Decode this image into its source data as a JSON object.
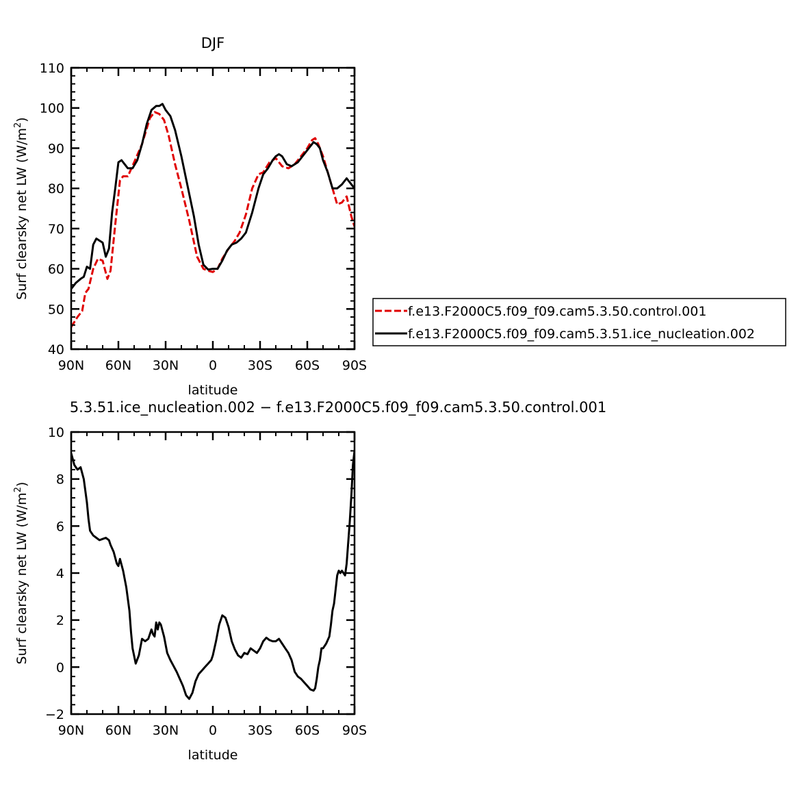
{
  "chart_data": [
    {
      "type": "line",
      "title": "DJF",
      "xlabel": "latitude",
      "ylabel": "Surf clearsky net LW (W/m²)",
      "ylabel_parts": {
        "main": "Surf clearsky net LW (W/m",
        "sup": "2",
        "end": ")"
      },
      "xlim": [
        -90,
        90
      ],
      "ylim": [
        40,
        110
      ],
      "xticks": [
        -90,
        -60,
        -30,
        0,
        30,
        60,
        90
      ],
      "xtick_labels": [
        "90N",
        "60N",
        "30N",
        "0",
        "30S",
        "60S",
        "90S"
      ],
      "yticks": [
        40,
        50,
        60,
        70,
        80,
        90,
        100,
        110
      ],
      "ytick_labels": [
        "40",
        "50",
        "60",
        "70",
        "80",
        "90",
        "100",
        "110"
      ],
      "legend": "outside-right",
      "series": [
        {
          "name": "f.e13.F2000C5.f09_f09.cam5.3.50.control.001",
          "color": "#e00000",
          "dash": true,
          "x": [
            -90,
            -86,
            -83,
            -81,
            -79,
            -76,
            -73,
            -70,
            -67,
            -65,
            -62,
            -59,
            -57,
            -54,
            -50,
            -45,
            -40,
            -37,
            -34,
            -31,
            -28,
            -24,
            -20,
            -15,
            -10,
            -6,
            -3,
            0,
            3,
            6,
            10,
            14,
            17,
            21,
            25,
            29,
            32,
            36,
            40,
            44,
            48,
            52,
            56,
            60,
            63,
            65,
            67,
            70,
            73,
            76,
            79,
            82,
            85,
            88,
            90
          ],
          "y": [
            45.5,
            48,
            49.5,
            54,
            55,
            60,
            62.5,
            62,
            57.5,
            59.5,
            71,
            82,
            83,
            83,
            86.5,
            91,
            97.5,
            99,
            98.5,
            97,
            93,
            86,
            80,
            72,
            63,
            60,
            59.5,
            59.2,
            60,
            62.5,
            65,
            67,
            69,
            73.5,
            80,
            83.5,
            84,
            86.5,
            87.5,
            85.5,
            85,
            86,
            88,
            90,
            92,
            92.5,
            91,
            88,
            84,
            80,
            76,
            76.5,
            78,
            73,
            70.5
          ]
        },
        {
          "name": "f.e13.F2000C5.f09_f09.cam5.3.51.ice_nucleation.002",
          "color": "#000000",
          "dash": false,
          "x": [
            -90,
            -87,
            -84,
            -82,
            -80,
            -78,
            -76,
            -74,
            -72,
            -70,
            -68,
            -66,
            -64,
            -62,
            -60,
            -58,
            -56,
            -54,
            -51,
            -48,
            -45,
            -42,
            -39,
            -36,
            -34,
            -32,
            -30,
            -27,
            -24,
            -20,
            -16,
            -12,
            -9,
            -6,
            -3,
            0,
            3,
            6,
            9,
            12,
            15,
            18,
            21,
            25,
            29,
            32,
            35,
            38,
            40,
            42,
            44,
            47,
            50,
            54,
            58,
            62,
            64,
            66,
            68,
            70,
            73,
            76,
            79,
            82,
            85,
            87,
            88,
            90
          ],
          "y": [
            55,
            56.5,
            57.5,
            58,
            60.5,
            60,
            66,
            67.5,
            67,
            66.5,
            63,
            65,
            74,
            80,
            86.5,
            87,
            86,
            85,
            85,
            87,
            91,
            96,
            99.5,
            100.5,
            100.5,
            101,
            99.5,
            98,
            94.5,
            88,
            80.5,
            73,
            66,
            61,
            59.8,
            60,
            60,
            62,
            64.5,
            66,
            66.5,
            67.5,
            69,
            74,
            80,
            83.5,
            85,
            87,
            88,
            88.5,
            88,
            86,
            85.5,
            86.5,
            88.5,
            90.5,
            91.5,
            91,
            90,
            87,
            84,
            80,
            80,
            81,
            82.5,
            81.5,
            81,
            80
          ]
        }
      ]
    },
    {
      "type": "line",
      "title": "5.3.51.ice_nucleation.002 − f.e13.F2000C5.f09_f09.cam5.3.50.control.001",
      "xlabel": "latitude",
      "ylabel": "Surf clearsky net LW (W/m²)",
      "ylabel_parts": {
        "main": "Surf clearsky net LW (W/m",
        "sup": "2",
        "end": ")"
      },
      "xlim": [
        -90,
        90
      ],
      "ylim": [
        -2,
        10
      ],
      "xticks": [
        -90,
        -60,
        -30,
        0,
        30,
        60,
        90
      ],
      "xtick_labels": [
        "90N",
        "60N",
        "30N",
        "0",
        "30S",
        "60S",
        "90S"
      ],
      "yticks": [
        -2,
        0,
        2,
        4,
        6,
        8,
        10
      ],
      "ytick_labels": [
        "−2",
        "0",
        "2",
        "4",
        "6",
        "8",
        "10"
      ],
      "series": [
        {
          "color": "#000000",
          "dash": false,
          "x": [
            -90,
            -88,
            -86,
            -84,
            -82,
            -80,
            -79,
            -78,
            -76,
            -74,
            -72,
            -70,
            -68,
            -66,
            -65,
            -63,
            -61,
            -60,
            -59,
            -57,
            -55,
            -53,
            -52,
            -51,
            -49,
            -47,
            -45,
            -43,
            -41,
            -39,
            -38,
            -37,
            -36,
            -35,
            -34,
            -33,
            -31,
            -29,
            -27,
            -25,
            -23,
            -21,
            -19,
            -17,
            -15,
            -13,
            -11,
            -9,
            -7,
            -5,
            -3,
            -1,
            0,
            2,
            4,
            6,
            8,
            10,
            12,
            14,
            16,
            18,
            20,
            22,
            24,
            26,
            28,
            30,
            32,
            34,
            36,
            38,
            40,
            42,
            44,
            46,
            48,
            50,
            52,
            54,
            56,
            58,
            60,
            62,
            64,
            65,
            66,
            67,
            68,
            69,
            70,
            72,
            74,
            75,
            76,
            77,
            78,
            79,
            80,
            81,
            82,
            83,
            84,
            85,
            86,
            87,
            88,
            89,
            90
          ],
          "y": [
            9.1,
            8.6,
            8.4,
            8.5,
            8.0,
            7.0,
            6.3,
            5.8,
            5.6,
            5.5,
            5.4,
            5.45,
            5.5,
            5.4,
            5.2,
            4.9,
            4.4,
            4.3,
            4.6,
            4.1,
            3.4,
            2.4,
            1.5,
            0.8,
            0.15,
            0.5,
            1.2,
            1.1,
            1.2,
            1.6,
            1.4,
            1.3,
            1.9,
            1.6,
            1.9,
            1.8,
            1.3,
            0.6,
            0.3,
            0.05,
            -0.2,
            -0.5,
            -0.8,
            -1.2,
            -1.35,
            -1.1,
            -0.6,
            -0.3,
            -0.15,
            0.0,
            0.15,
            0.3,
            0.5,
            1.1,
            1.8,
            2.2,
            2.1,
            1.7,
            1.1,
            0.75,
            0.5,
            0.4,
            0.6,
            0.55,
            0.8,
            0.7,
            0.6,
            0.8,
            1.1,
            1.25,
            1.15,
            1.1,
            1.1,
            1.2,
            1.0,
            0.8,
            0.6,
            0.3,
            -0.2,
            -0.4,
            -0.5,
            -0.65,
            -0.8,
            -0.95,
            -1.0,
            -0.9,
            -0.5,
            0.0,
            0.3,
            0.8,
            0.8,
            1.0,
            1.3,
            1.8,
            2.4,
            2.7,
            3.3,
            3.9,
            4.1,
            4.0,
            4.1,
            4.0,
            3.9,
            4.4,
            5.3,
            6.2,
            7.3,
            8.6,
            9.2
          ]
        }
      ]
    }
  ]
}
